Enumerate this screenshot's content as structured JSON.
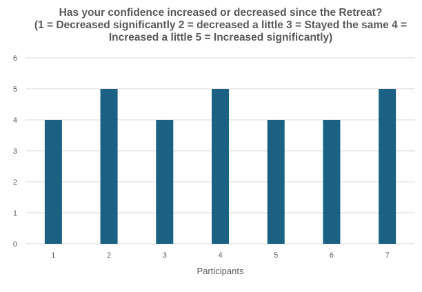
{
  "chart_data": {
    "type": "bar",
    "title": "Has your confidence increased or decreased since the Retreat?",
    "subtitle": "(1 = Decreased significantly 2 = decreased a little 3 = Stayed the same 4 = Increased a little 5 = Increased significantly)",
    "xlabel": "Participants",
    "ylabel": "",
    "categories": [
      "1",
      "2",
      "3",
      "4",
      "5",
      "6",
      "7"
    ],
    "values": [
      4,
      5,
      4,
      5,
      4,
      4,
      5
    ],
    "ylim": [
      0,
      6
    ],
    "yticks": [
      0,
      1,
      2,
      3,
      4,
      5,
      6
    ],
    "grid": true,
    "legend": "none",
    "bar_color": "#1a6183",
    "grid_color": "#d9d9d9"
  }
}
